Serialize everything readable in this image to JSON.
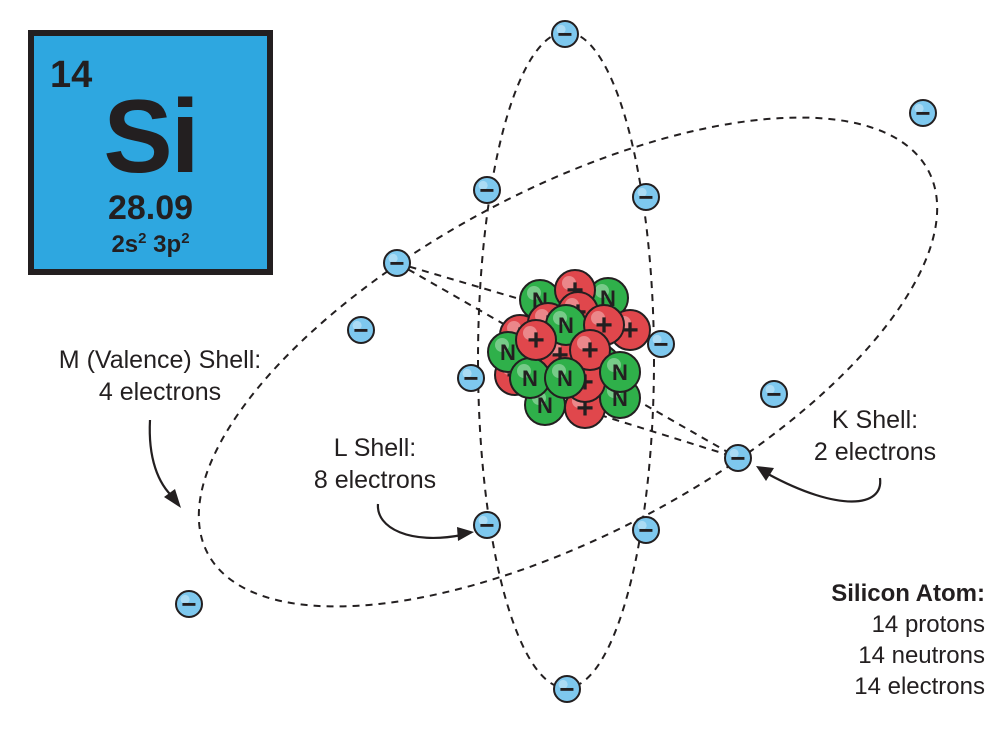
{
  "element": {
    "atomic_number": "14",
    "symbol": "Si",
    "atomic_mass": "28.09",
    "config_1": "2s",
    "config_1_sup": "2",
    "config_2": "3p",
    "config_2_sup": "2"
  },
  "labels": {
    "m_shell_title": "M (Valence) Shell:",
    "m_shell_count": "4 electrons",
    "l_shell_title": "L Shell:",
    "l_shell_count": "8 electrons",
    "k_shell_title": "K Shell:",
    "k_shell_count": "2 electrons"
  },
  "summary": {
    "title": "Silicon Atom:",
    "protons": "14 protons",
    "neutrons": "14 neutrons",
    "electrons": "14 electrons"
  },
  "glyphs": {
    "electron": "−",
    "proton": "+",
    "neutron": "N"
  },
  "colors": {
    "tile_blue": "#2ea7e0",
    "electron_fill": "#7ec8ee",
    "proton_red": "#e0474c",
    "neutron_green": "#2fb04a",
    "outline": "#231f20"
  }
}
